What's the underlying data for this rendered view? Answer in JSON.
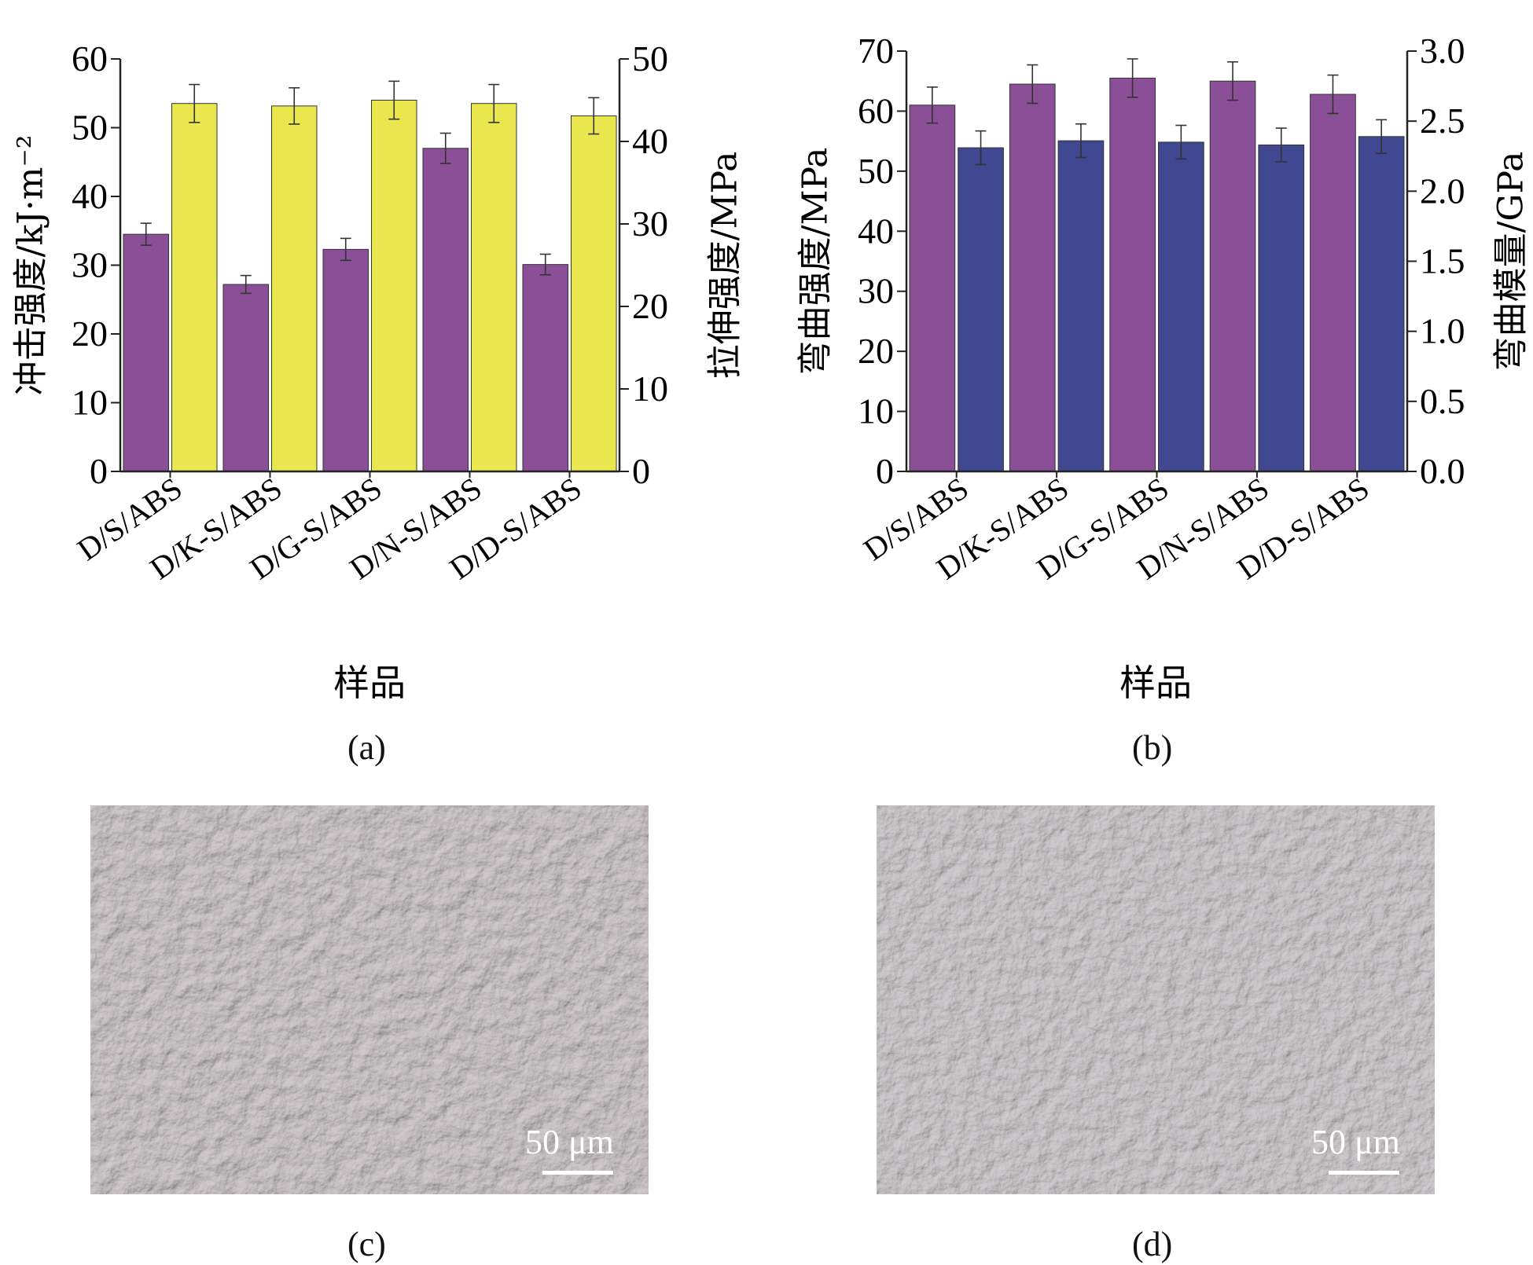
{
  "chart_data": [
    {
      "id": "a",
      "type": "bar",
      "categories": [
        "D/S/ABS",
        "D/K-S/ABS",
        "D/G-S/ABS",
        "D/N-S/ABS",
        "D/D-S/ABS"
      ],
      "xlabel": "样品",
      "caption": "(a)",
      "left_axis": {
        "label": "冲击强度/kJ·m⁻²",
        "ylim": [
          0,
          60
        ],
        "ticks": [
          "0",
          "10",
          "20",
          "30",
          "40",
          "50",
          "60"
        ]
      },
      "right_axis": {
        "label": "拉伸强度/MPa",
        "ylim": [
          0,
          50
        ],
        "ticks": [
          "0",
          "10",
          "20",
          "30",
          "40",
          "50"
        ]
      },
      "series": [
        {
          "axis": "left",
          "color": "#8a4f96",
          "values": [
            34.5,
            27.2,
            32.3,
            47.0,
            30.1
          ],
          "errors": [
            1.6,
            1.3,
            1.6,
            2.2,
            1.5
          ]
        },
        {
          "axis": "right",
          "color": "#eae64e",
          "values": [
            44.6,
            44.3,
            45.0,
            44.6,
            43.1
          ],
          "errors": [
            2.3,
            2.2,
            2.3,
            2.3,
            2.2
          ]
        }
      ],
      "grid": false,
      "legend": "none"
    },
    {
      "id": "b",
      "type": "bar",
      "categories": [
        "D/S/ABS",
        "D/K-S/ABS",
        "D/G-S/ABS",
        "D/N-S/ABS",
        "D/D-S/ABS"
      ],
      "xlabel": "样品",
      "caption": "(b)",
      "left_axis": {
        "label": "弯曲强度/MPa",
        "ylim": [
          0,
          70
        ],
        "ticks": [
          "0",
          "10",
          "20",
          "30",
          "40",
          "50",
          "60",
          "70"
        ]
      },
      "right_axis": {
        "label": "弯曲模量/GPa",
        "ylim": [
          0,
          3.0
        ],
        "ticks": [
          "0.0",
          "0.5",
          "1.0",
          "1.5",
          "2.0",
          "2.5",
          "3.0"
        ]
      },
      "series": [
        {
          "axis": "left",
          "color": "#8a4f96",
          "values": [
            61.0,
            64.5,
            65.5,
            65.0,
            62.8
          ],
          "errors": [
            3.0,
            3.2,
            3.2,
            3.2,
            3.2
          ]
        },
        {
          "axis": "right",
          "color": "#3f4891",
          "values": [
            2.31,
            2.36,
            2.35,
            2.33,
            2.39
          ],
          "errors": [
            0.12,
            0.12,
            0.12,
            0.12,
            0.12
          ]
        }
      ],
      "grid": false,
      "legend": "none"
    }
  ],
  "micrographs": [
    {
      "id": "c",
      "caption": "(c)",
      "scale_label": "50 μm"
    },
    {
      "id": "d",
      "caption": "(d)",
      "scale_label": "50 μm"
    }
  ]
}
